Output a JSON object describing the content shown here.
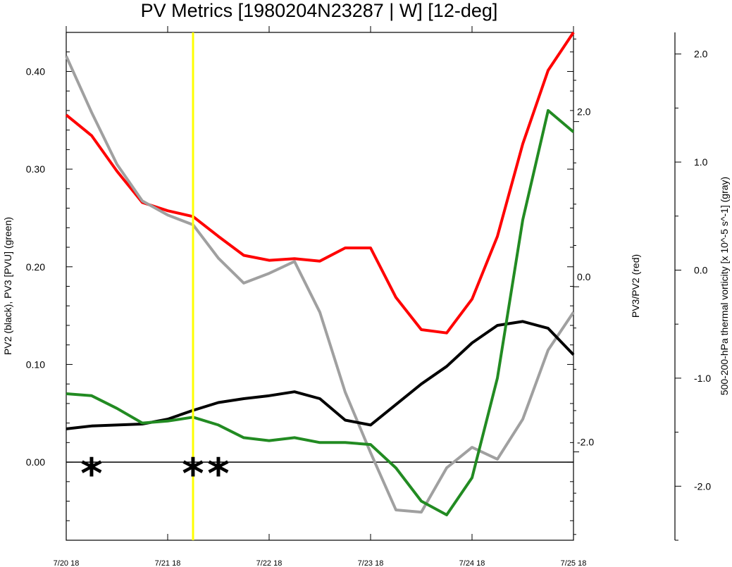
{
  "chart_data": {
    "type": "line",
    "title": "PV Metrics [1980204N23287 | W] [12-deg]",
    "x_tick_labels": [
      "7/20 18",
      "7/21 18",
      "7/22 18",
      "7/23 18",
      "7/24 18",
      "7/25 18"
    ],
    "x": [
      0,
      0.25,
      0.5,
      0.75,
      1.0,
      1.25,
      1.5,
      1.75,
      2.0,
      2.25,
      2.5,
      2.75,
      3.0,
      3.25,
      3.5,
      3.75,
      4.0,
      4.25,
      4.5,
      4.75,
      5.0
    ],
    "left_axis": {
      "label": "PV2 (black), PV3 [PVU] (green)",
      "range": [
        -0.08,
        0.44
      ],
      "ticks": [
        0.0,
        0.1,
        0.2,
        0.3,
        0.4
      ],
      "tick_labels": [
        "0.00",
        "0.10",
        "0.20",
        "0.30",
        "0.40"
      ]
    },
    "middle_axis": {
      "label": "PV3/PV2 (red)",
      "range": [
        -3.07,
        3.08
      ],
      "ticks": [
        -2.0,
        0.0,
        2.0
      ],
      "tick_labels": [
        "-2.0",
        "0.0",
        "2.0"
      ]
    },
    "right_axis": {
      "label": "500-200-hPa thermal vorticity [x 10^-5 s^-1] (gray)",
      "range": [
        -2.5,
        2.2
      ],
      "ticks": [
        -2.0,
        -1.0,
        0.0,
        1.0,
        2.0
      ],
      "tick_labels": [
        "-2.0",
        "-1.0",
        "0.0",
        "1.0",
        "2.0"
      ]
    },
    "series": [
      {
        "axis": "left",
        "color": "#000000",
        "values": [
          0.034,
          0.037,
          0.038,
          0.039,
          0.044,
          0.053,
          0.061,
          0.065,
          0.068,
          0.072,
          0.065,
          0.043,
          0.038,
          0.059,
          0.08,
          0.098,
          0.122,
          0.14,
          0.144,
          0.137,
          0.11
        ]
      },
      {
        "axis": "left",
        "color": "#228b22",
        "values": [
          0.07,
          0.068,
          0.055,
          0.04,
          0.042,
          0.046,
          0.038,
          0.025,
          0.022,
          0.025,
          0.02,
          0.02,
          0.018,
          -0.006,
          -0.04,
          -0.054,
          -0.016,
          0.086,
          0.248,
          0.36,
          0.338
        ]
      },
      {
        "axis": "middle",
        "color": "#ff0000",
        "values": [
          2.08,
          1.83,
          1.4,
          1.02,
          0.92,
          0.85,
          0.61,
          0.38,
          0.32,
          0.34,
          0.31,
          0.47,
          0.47,
          -0.13,
          -0.52,
          -0.56,
          -0.15,
          0.61,
          1.73,
          2.62,
          3.08
        ]
      },
      {
        "axis": "right",
        "color": "#a0a0a0",
        "values": [
          1.98,
          1.46,
          0.98,
          0.64,
          0.51,
          0.42,
          0.11,
          -0.12,
          -0.03,
          0.08,
          -0.39,
          -1.13,
          -1.69,
          -2.22,
          -2.24,
          -1.83,
          -1.64,
          -1.75,
          -1.38,
          -0.74,
          -0.39
        ]
      }
    ],
    "zero_line": 0.0,
    "vertical_marker": {
      "x": 1.25,
      "color": "#ffff00"
    },
    "star_markers": {
      "symbol": "*",
      "x": [
        0.25,
        1.25,
        1.5
      ],
      "y": 0.0
    },
    "grid": false,
    "legend": "none"
  }
}
